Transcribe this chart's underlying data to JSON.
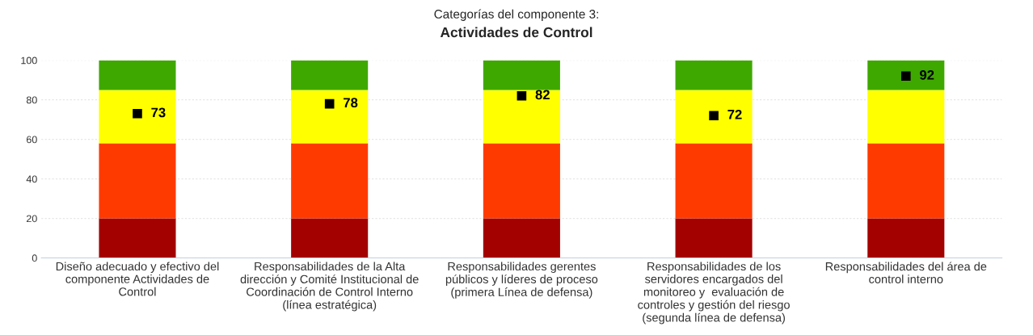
{
  "chart_data": {
    "type": "bar",
    "title": "Actividades de Control",
    "subtitle": "Categorías del componente 3:",
    "categories": [
      "Diseño adecuado y efectivo del\ncomponente Actividades de\nControl",
      "Responsabilidades de la Alta\ndirección y Comité Institucional de\nCoordinación de Control Interno\n(línea estratégica)",
      "Responsabilidades gerentes\npúblicos y líderes de proceso\n(primera Línea de defensa)",
      "Responsabilidades de los\nservidores encargados del\nmonitoreo y  evaluación de\ncontroles y gestión del riesgo\n(segunda línea de defensa)",
      "Responsabilidades del área de\ncontrol interno"
    ],
    "stacked": true,
    "series": [
      {
        "color": "#a30000",
        "values": [
          20,
          20,
          20,
          20,
          20
        ]
      },
      {
        "color": "#ff3a00",
        "values": [
          38,
          38,
          38,
          38,
          38
        ]
      },
      {
        "color": "#ffff00",
        "values": [
          27,
          27,
          27,
          27,
          27
        ]
      },
      {
        "color": "#3fa800",
        "values": [
          15,
          15,
          15,
          15,
          15
        ]
      },
      {
        "type": "scatter",
        "color": "#000000",
        "values": [
          73,
          78,
          82,
          72,
          92
        ],
        "value_labels": [
          "73",
          "78",
          "82",
          "72",
          "92"
        ]
      }
    ],
    "ylim": [
      0,
      100
    ],
    "yticks": [
      0,
      20,
      40,
      60,
      80,
      100
    ],
    "grid": "y",
    "marker": "square",
    "legend": false
  }
}
